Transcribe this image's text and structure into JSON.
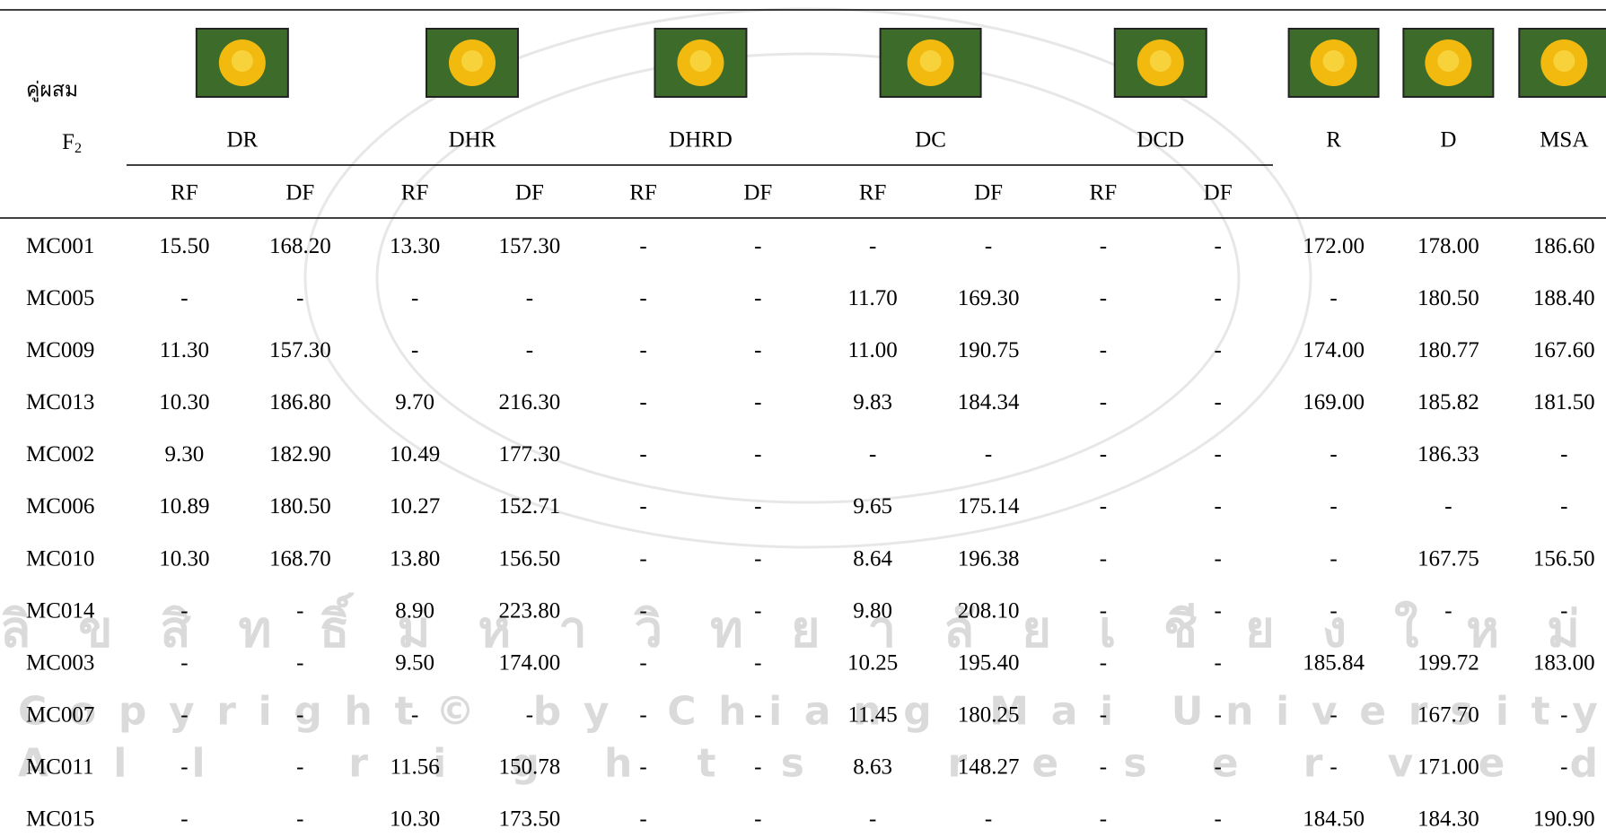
{
  "table": {
    "corner": [
      "คู่ผสม",
      {
        "text": "F",
        "sub": "2"
      }
    ],
    "groups": [
      "DR",
      "DHR",
      "DHRD",
      "DC",
      "DCD"
    ],
    "singles": [
      "R",
      "D",
      "MSA"
    ],
    "subheaders": [
      "RF",
      "DF",
      "RF",
      "DF",
      "RF",
      "DF",
      "RF",
      "DF",
      "RF",
      "DF"
    ],
    "rows": [
      [
        "MC001",
        "15.50",
        "168.20",
        "13.30",
        "157.30",
        "-",
        "-",
        "-",
        "-",
        "-",
        "-",
        "172.00",
        "178.00",
        "186.60"
      ],
      [
        "MC005",
        "-",
        "-",
        "-",
        "-",
        "-",
        "-",
        "11.70",
        "169.30",
        "-",
        "-",
        "-",
        "180.50",
        "188.40"
      ],
      [
        "MC009",
        "11.30",
        "157.30",
        "-",
        "-",
        "-",
        "-",
        "11.00",
        "190.75",
        "-",
        "-",
        "174.00",
        "180.77",
        "167.60"
      ],
      [
        "MC013",
        "10.30",
        "186.80",
        "9.70",
        "216.30",
        "-",
        "-",
        "9.83",
        "184.34",
        "-",
        "-",
        "169.00",
        "185.82",
        "181.50"
      ],
      [
        "MC002",
        "9.30",
        "182.90",
        "10.49",
        "177.30",
        "-",
        "-",
        "-",
        "-",
        "-",
        "-",
        "-",
        "186.33",
        "-"
      ],
      [
        "MC006",
        "10.89",
        "180.50",
        "10.27",
        "152.71",
        "-",
        "-",
        "9.65",
        "175.14",
        "-",
        "-",
        "-",
        "-",
        "-"
      ],
      [
        "MC010",
        "10.30",
        "168.70",
        "13.80",
        "156.50",
        "-",
        "-",
        "8.64",
        "196.38",
        "-",
        "-",
        "-",
        "167.75",
        "156.50"
      ],
      [
        "MC014",
        "-",
        "-",
        "8.90",
        "223.80",
        "-",
        "-",
        "9.80",
        "208.10",
        "-",
        "-",
        "-",
        "-",
        "-"
      ],
      [
        "MC003",
        "-",
        "-",
        "9.50",
        "174.00",
        "-",
        "-",
        "10.25",
        "195.40",
        "-",
        "-",
        "185.84",
        "199.72",
        "183.00"
      ],
      [
        "MC007",
        "-",
        "-",
        "-",
        "-",
        "-",
        "-",
        "11.45",
        "180.25",
        "-",
        "-",
        "-",
        "167.70",
        "-"
      ],
      [
        "MC011",
        "-",
        "-",
        "11.56",
        "150.78",
        "-",
        "-",
        "8.63",
        "148.27",
        "-",
        "-",
        "-",
        "171.00",
        "-"
      ],
      [
        "MC015",
        "-",
        "-",
        "10.30",
        "173.50",
        "-",
        "-",
        "-",
        "-",
        "-",
        "-",
        "184.50",
        "184.30",
        "190.90"
      ]
    ]
  },
  "watermark": [
    "ลิขสิทธิ์มหาวิทยาลัยเชียงใหม่",
    "Copyright© by Chiang Mai University",
    "All rights reserved"
  ]
}
